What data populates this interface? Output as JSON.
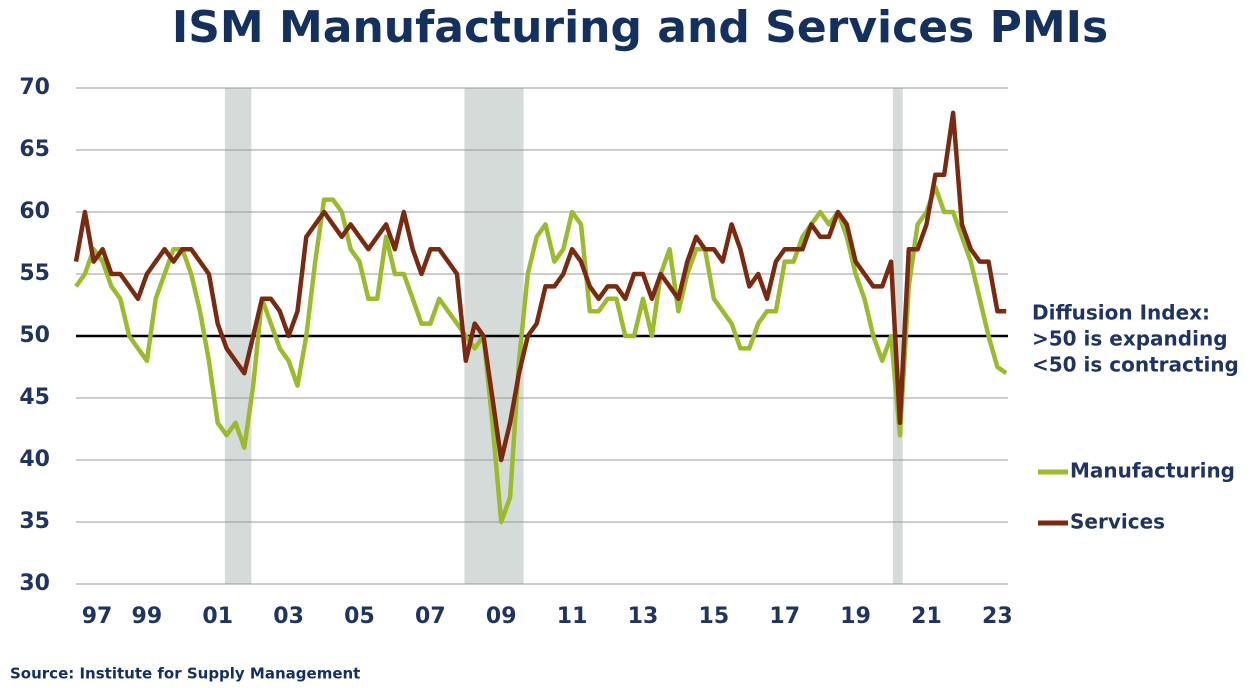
{
  "chart_data": {
    "type": "line",
    "title": "ISM Manufacturing and Services PMIs",
    "source": "Source: Institute for Supply Management",
    "annotation": [
      ">50 is expanding",
      "<50 is contracting"
    ],
    "annotation_title": "Diffusion Index:",
    "x": [
      1997,
      1997.25,
      1997.5,
      1997.75,
      1998,
      1998.25,
      1998.5,
      1998.75,
      1999,
      1999.25,
      1999.5,
      1999.75,
      2000,
      2000.25,
      2000.5,
      2000.75,
      2001,
      2001.25,
      2001.5,
      2001.75,
      2002,
      2002.25,
      2002.5,
      2002.75,
      2003,
      2003.25,
      2003.5,
      2003.75,
      2004,
      2004.25,
      2004.5,
      2004.75,
      2005,
      2005.25,
      2005.5,
      2005.75,
      2006,
      2006.25,
      2006.5,
      2006.75,
      2007,
      2007.25,
      2007.5,
      2007.75,
      2008,
      2008.25,
      2008.5,
      2008.75,
      2009,
      2009.25,
      2009.5,
      2009.75,
      2010,
      2010.25,
      2010.5,
      2010.75,
      2011,
      2011.25,
      2011.5,
      2011.75,
      2012,
      2012.25,
      2012.5,
      2012.75,
      2013,
      2013.25,
      2013.5,
      2013.75,
      2014,
      2014.25,
      2014.5,
      2014.75,
      2015,
      2015.25,
      2015.5,
      2015.75,
      2016,
      2016.25,
      2016.5,
      2016.75,
      2017,
      2017.25,
      2017.5,
      2017.75,
      2018,
      2018.25,
      2018.5,
      2018.75,
      2019,
      2019.25,
      2019.5,
      2019.75,
      2020,
      2020.25,
      2020.5,
      2020.75,
      2021,
      2021.25,
      2021.5,
      2021.75,
      2022,
      2022.25,
      2022.5,
      2022.75,
      2023,
      2023.25
    ],
    "series": [
      {
        "name": "Manufacturing",
        "color": "#9bbb2d",
        "values": [
          54,
          55,
          57,
          56,
          54,
          53,
          50,
          49,
          48,
          53,
          55,
          57,
          57,
          55,
          52,
          48,
          43,
          42,
          43,
          41,
          46,
          53,
          51,
          49,
          48,
          46,
          50,
          56,
          61,
          61,
          60,
          57,
          56,
          53,
          53,
          58,
          55,
          55,
          53,
          51,
          51,
          53,
          52,
          51,
          50,
          49,
          50,
          43,
          35,
          37,
          48,
          55,
          58,
          59,
          56,
          57,
          60,
          59,
          52,
          52,
          53,
          53,
          50,
          50,
          53,
          50,
          55,
          57,
          52,
          55,
          57,
          57,
          53,
          52,
          51,
          49,
          49,
          51,
          52,
          52,
          56,
          56,
          58,
          59,
          60,
          59,
          60,
          58,
          55,
          53,
          50,
          48,
          50,
          42,
          54,
          59,
          60,
          62,
          60,
          60,
          58,
          56,
          53,
          50,
          47.5,
          47
        ]
      },
      {
        "name": "Services",
        "color": "#7b2a12",
        "values": [
          56,
          60,
          56,
          57,
          55,
          55,
          54,
          53,
          55,
          56,
          57,
          56,
          57,
          57,
          56,
          55,
          51,
          49,
          48,
          47,
          50,
          53,
          53,
          52,
          50,
          52,
          58,
          59,
          60,
          59,
          58,
          59,
          58,
          57,
          58,
          59,
          57,
          60,
          57,
          55,
          57,
          57,
          56,
          55,
          48,
          51,
          50,
          45,
          40,
          43,
          47,
          50,
          51,
          54,
          54,
          55,
          57,
          56,
          54,
          53,
          54,
          54,
          53,
          55,
          55,
          53,
          55,
          54,
          53,
          56,
          58,
          57,
          57,
          56,
          59,
          57,
          54,
          55,
          53,
          56,
          57,
          57,
          57,
          59,
          58,
          58,
          60,
          59,
          56,
          55,
          54,
          54,
          56,
          43,
          57,
          57,
          59,
          63,
          63,
          68,
          59,
          57,
          56,
          56,
          52,
          52
        ]
      }
    ],
    "xlim": [
      1997,
      2023.3
    ],
    "xticks": [
      {
        "value": 1997,
        "label": "97"
      },
      {
        "value": 1999,
        "label": "99"
      },
      {
        "value": 2001,
        "label": "01"
      },
      {
        "value": 2003,
        "label": "03"
      },
      {
        "value": 2005,
        "label": "05"
      },
      {
        "value": 2007,
        "label": "07"
      },
      {
        "value": 2009,
        "label": "09"
      },
      {
        "value": 2011,
        "label": "11"
      },
      {
        "value": 2013,
        "label": "13"
      },
      {
        "value": 2015,
        "label": "15"
      },
      {
        "value": 2017,
        "label": "17"
      },
      {
        "value": 2019,
        "label": "19"
      },
      {
        "value": 2021,
        "label": "21"
      },
      {
        "value": 2023,
        "label": "23"
      }
    ],
    "ylim": [
      30,
      70
    ],
    "yticks": [
      30,
      35,
      40,
      45,
      50,
      55,
      60,
      65,
      70
    ],
    "grid": true,
    "reference_line": 50,
    "recessions": [
      [
        2001.2,
        2001.95
      ],
      [
        2007.96,
        2009.63
      ],
      [
        2020.05,
        2020.33
      ]
    ],
    "recession_color": "#d5dbd9"
  }
}
